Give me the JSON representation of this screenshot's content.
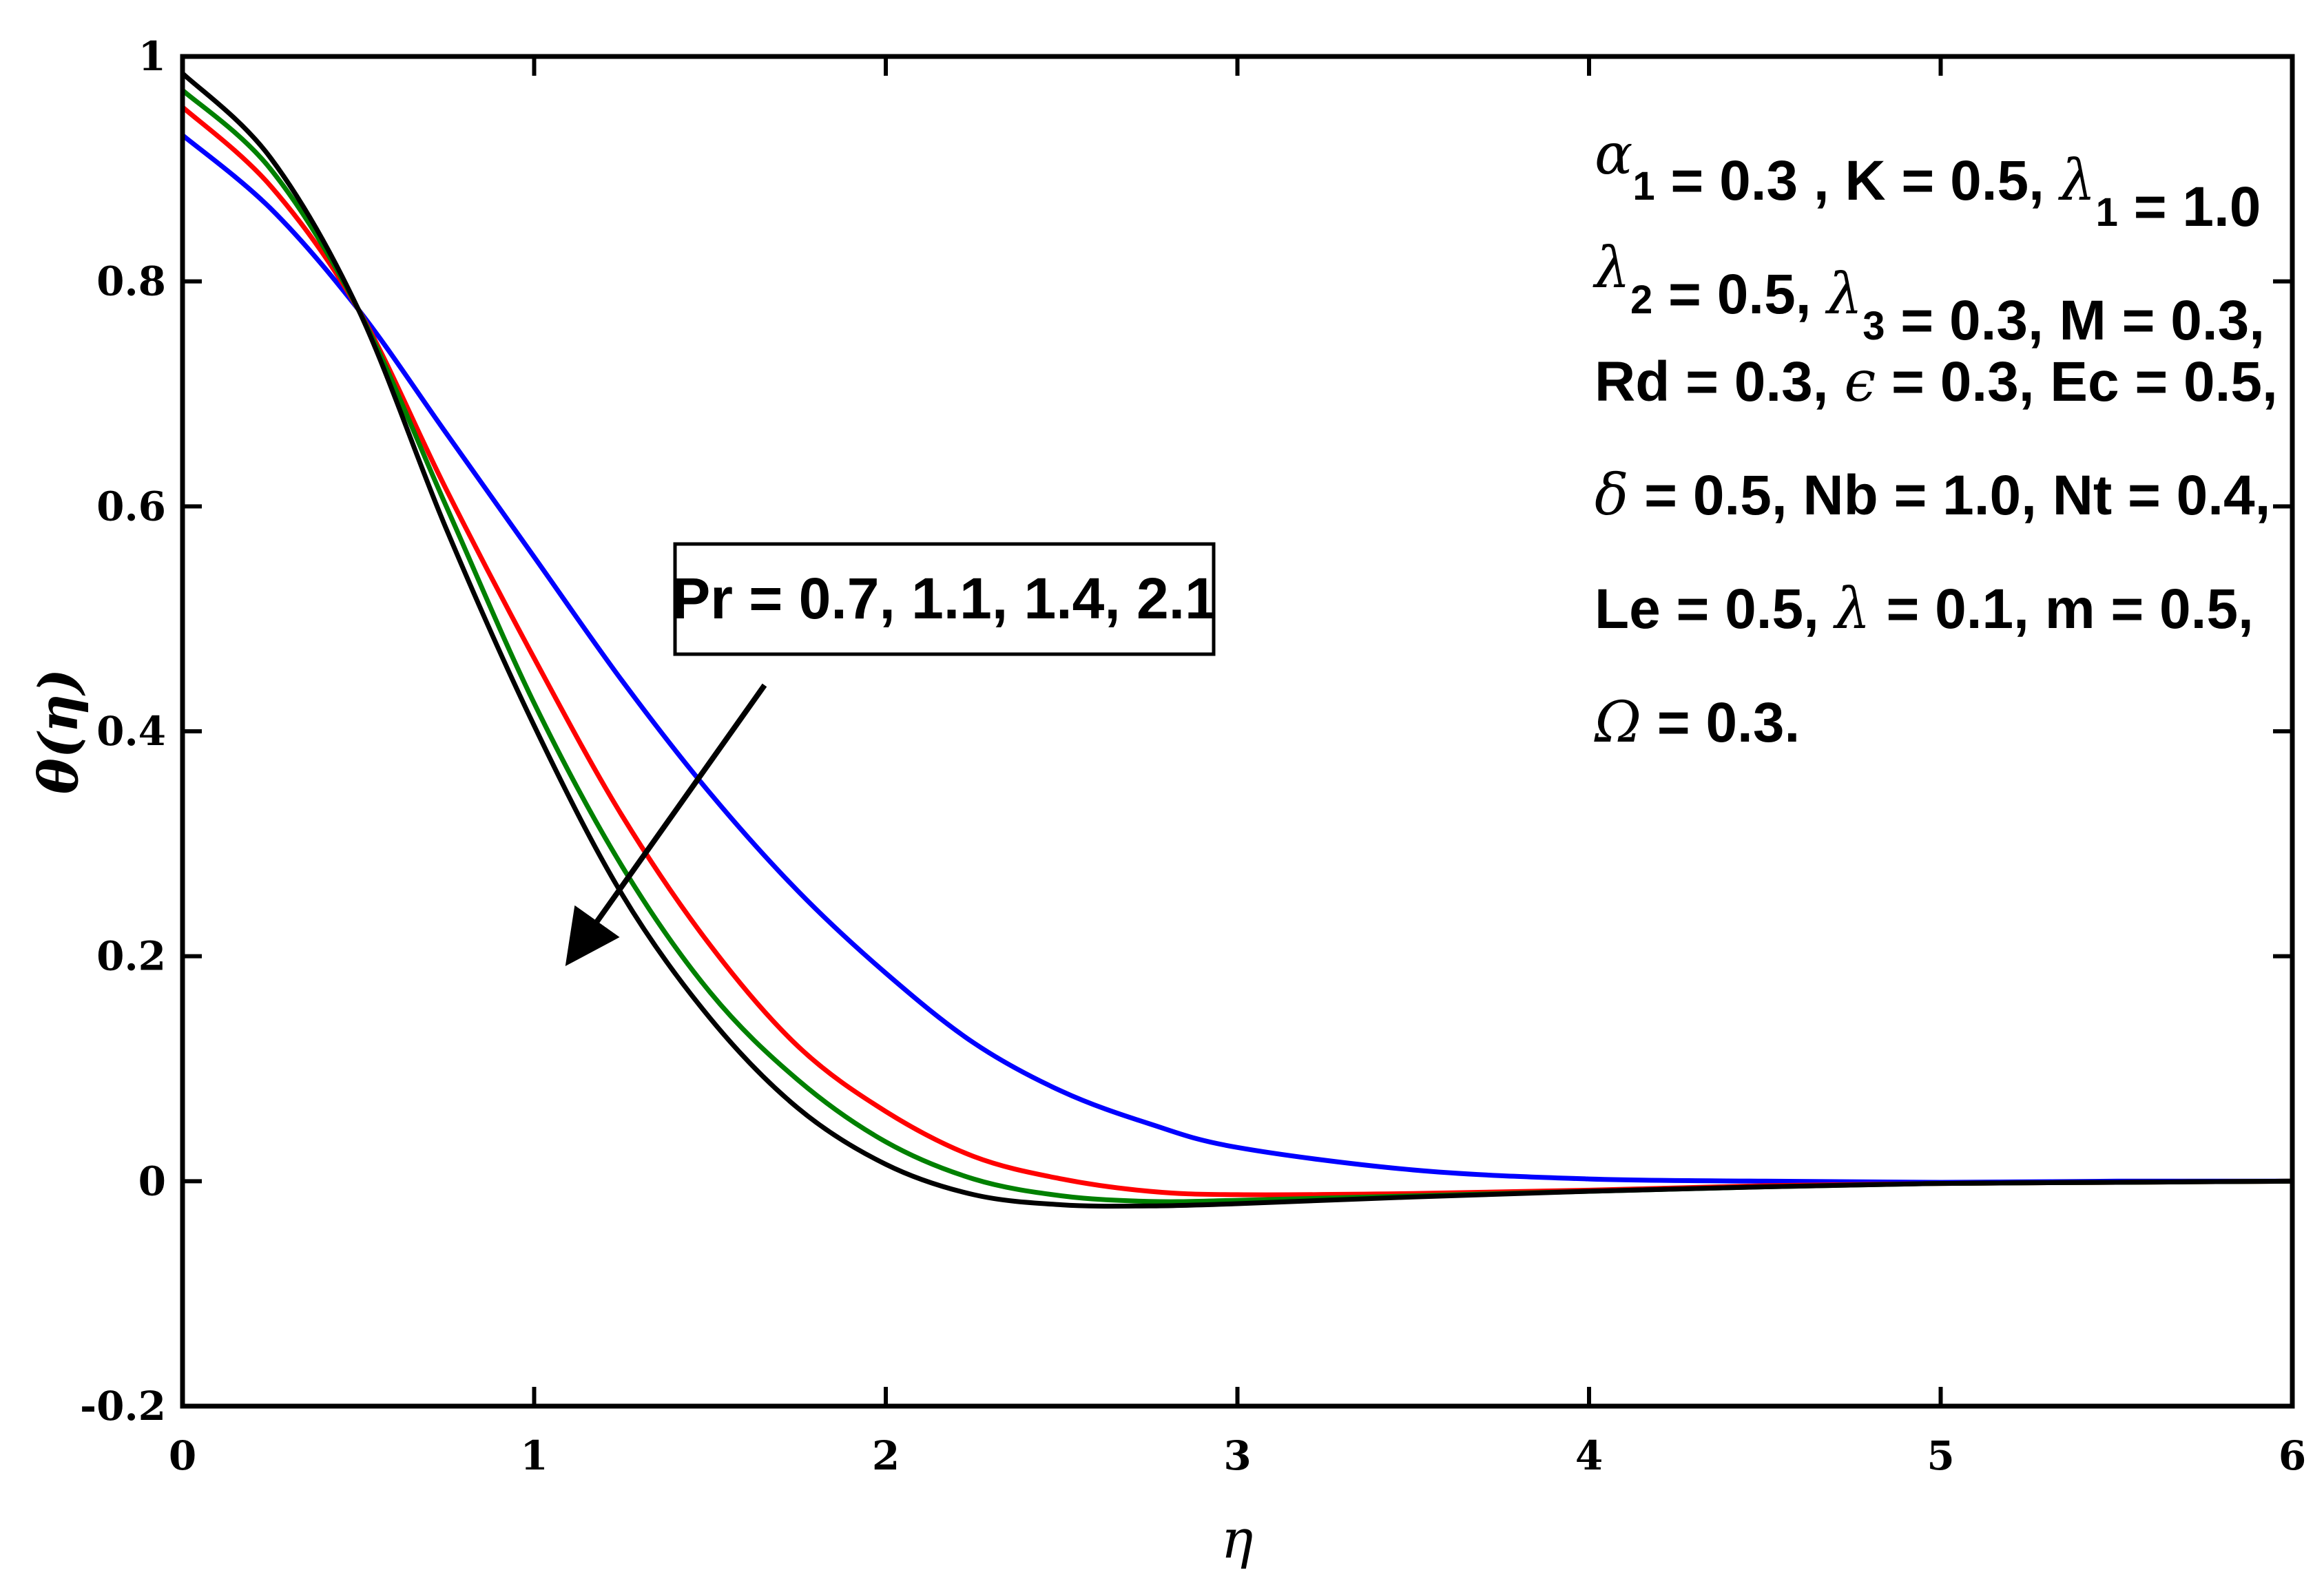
{
  "chart_data": {
    "type": "line",
    "xlabel": "η",
    "ylabel": "θ(η)",
    "xlim": [
      0,
      6
    ],
    "ylim": [
      -0.2,
      1
    ],
    "x_ticks": [
      "0",
      "1",
      "2",
      "3",
      "4",
      "5",
      "6"
    ],
    "y_ticks": [
      "-0.2",
      "0",
      "0.2",
      "0.4",
      "0.6",
      "0.8",
      "1"
    ],
    "grid": false,
    "x": [
      0,
      0.25,
      0.5,
      0.75,
      1.0,
      1.25,
      1.5,
      1.75,
      2.0,
      2.25,
      2.5,
      2.75,
      3.0,
      3.5,
      4.0,
      4.5,
      5.0,
      5.5,
      6.0
    ],
    "series": [
      {
        "color": "#0000ff",
        "values": [
          0.93,
          0.865,
          0.775,
          0.665,
          0.555,
          0.445,
          0.345,
          0.258,
          0.185,
          0.123,
          0.08,
          0.051,
          0.03,
          0.01,
          0.002,
          0.0,
          -0.001,
          0.0,
          0.0
        ]
      },
      {
        "color": "#ff0000",
        "values": [
          0.955,
          0.885,
          0.775,
          0.615,
          0.465,
          0.325,
          0.21,
          0.12,
          0.062,
          0.022,
          0.002,
          -0.009,
          -0.012,
          -0.011,
          -0.008,
          -0.004,
          -0.002,
          -0.001,
          0.0
        ]
      },
      {
        "color": "#008000",
        "values": [
          0.97,
          0.9,
          0.775,
          0.6,
          0.425,
          0.28,
          0.168,
          0.09,
          0.035,
          0.002,
          -0.013,
          -0.018,
          -0.017,
          -0.013,
          -0.009,
          -0.005,
          -0.002,
          -0.001,
          0.0
        ]
      },
      {
        "color": "#000000",
        "values": [
          0.985,
          0.91,
          0.775,
          0.58,
          0.405,
          0.255,
          0.145,
          0.065,
          0.015,
          -0.012,
          -0.021,
          -0.022,
          -0.02,
          -0.014,
          -0.009,
          -0.005,
          -0.002,
          -0.001,
          0.0
        ]
      }
    ],
    "annotation_lines": [
      [
        {
          "t": "α",
          "sym": true
        },
        {
          "t": "1",
          "sub": true
        },
        {
          "t": " = 0.3 , K = 0.5, "
        },
        {
          "t": "λ",
          "sym": true
        },
        {
          "t": "1",
          "sub": true
        },
        {
          "t": " = 1.0"
        }
      ],
      [
        {
          "t": "λ",
          "sym": true
        },
        {
          "t": "2",
          "sub": true
        },
        {
          "t": " = 0.5, "
        },
        {
          "t": "λ",
          "sym": true
        },
        {
          "t": "3",
          "sub": true
        },
        {
          "t": " = 0.3, M = 0.3,"
        }
      ],
      [
        {
          "t": "Rd = 0.3, "
        },
        {
          "t": "ϵ",
          "sym": true
        },
        {
          "t": " = 0.3, Ec = 0.5,"
        }
      ],
      [
        {
          "t": "δ",
          "sym": true
        },
        {
          "t": " = 0.5, Nb = 1.0, Nt = 0.4,"
        }
      ],
      [
        {
          "t": "Le = 0.5, "
        },
        {
          "t": "λ",
          "sym": true
        },
        {
          "t": " = 0.1, m = 0.5,"
        }
      ],
      [
        {
          "t": "Ω",
          "sym": true
        },
        {
          "t": " = 0.3."
        }
      ]
    ],
    "arrow_label": "Pr = 0.7, 1.1, 1.4, 2.1"
  }
}
